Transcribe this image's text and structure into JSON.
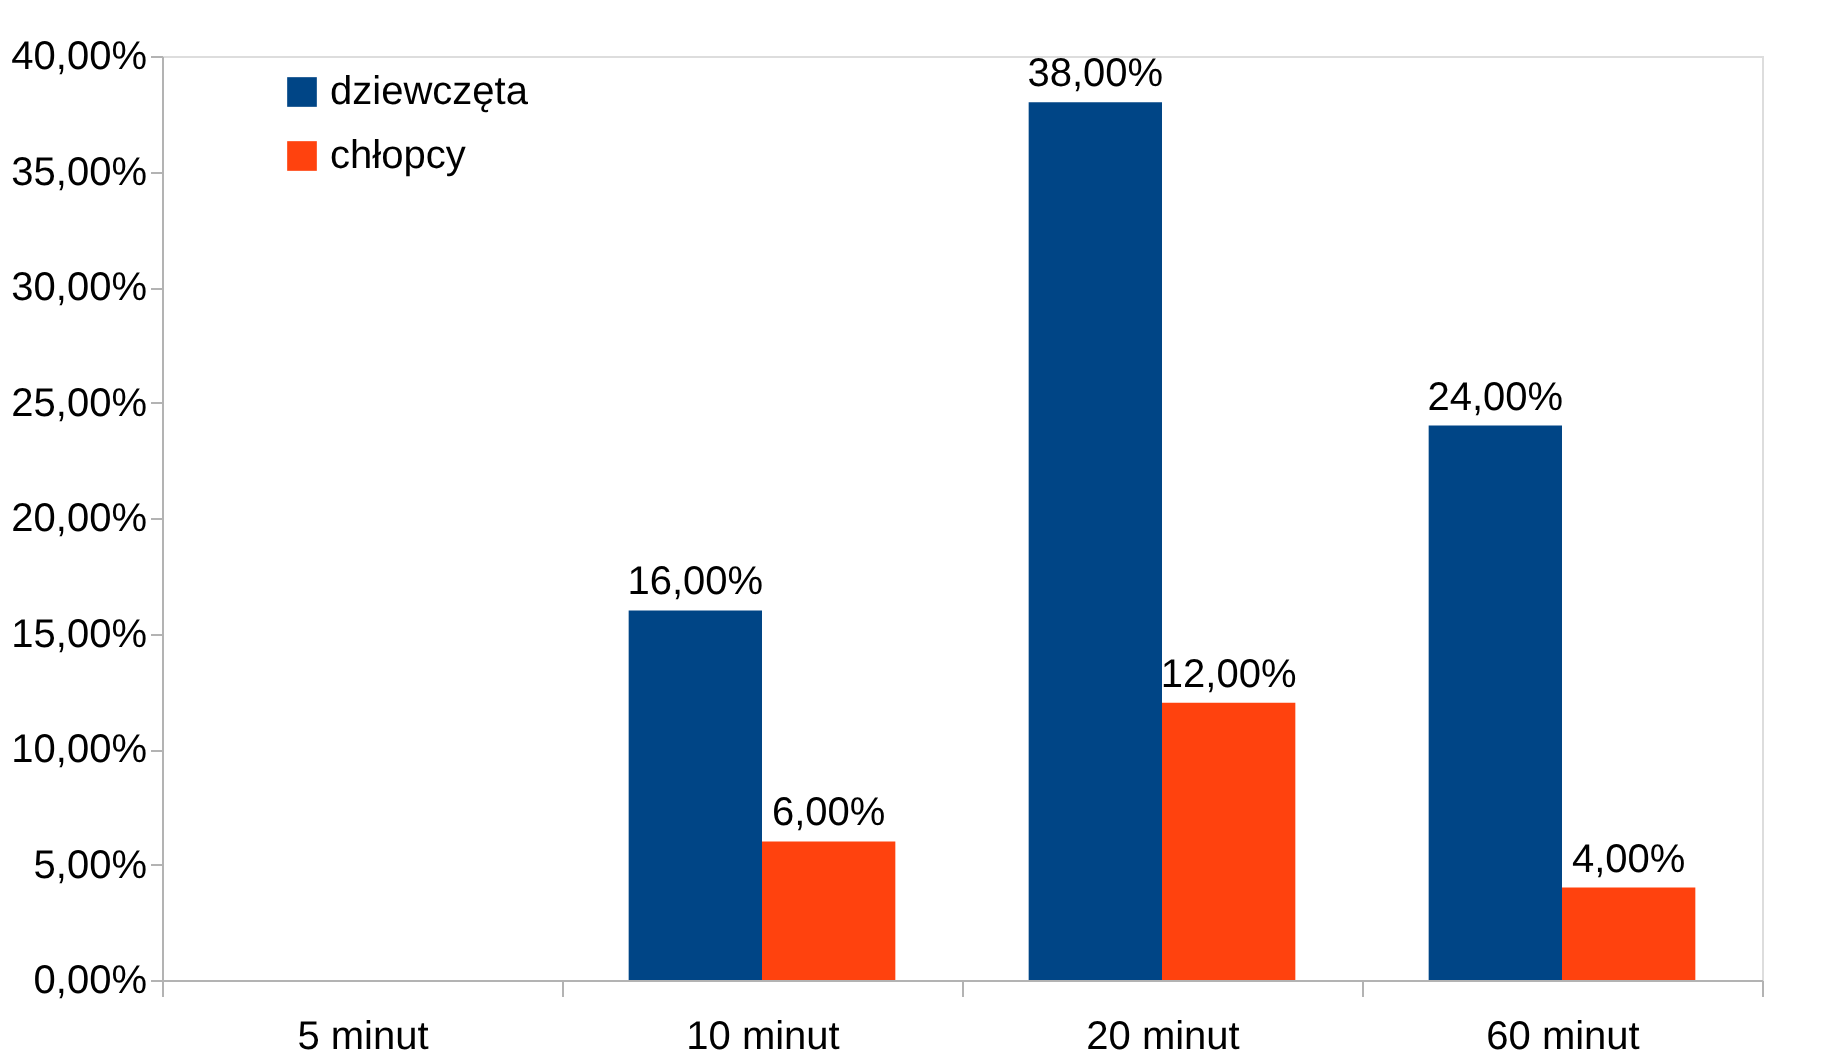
{
  "chart_data": {
    "type": "bar",
    "categories": [
      "5 minut",
      "10 minut",
      "20 minut",
      "60 minut"
    ],
    "series": [
      {
        "name": "dziewczęta",
        "color": "#004586",
        "values": [
          null,
          16,
          38,
          24
        ],
        "value_labels": [
          null,
          "16,00%",
          "38,00%",
          "24,00%"
        ]
      },
      {
        "name": "chłopcy",
        "color": "#ff420e",
        "values": [
          null,
          6,
          12,
          4
        ],
        "value_labels": [
          null,
          "6,00%",
          "12,00%",
          "4,00%"
        ]
      }
    ],
    "ylim": [
      0,
      40
    ],
    "yticks": [
      {
        "value": 0,
        "label": "0,00%"
      },
      {
        "value": 5,
        "label": "5,00%"
      },
      {
        "value": 10,
        "label": "10,00%"
      },
      {
        "value": 15,
        "label": "15,00%"
      },
      {
        "value": 20,
        "label": "20,00%"
      },
      {
        "value": 25,
        "label": "25,00%"
      },
      {
        "value": 30,
        "label": "30,00%"
      },
      {
        "value": 35,
        "label": "35,00%"
      },
      {
        "value": 40,
        "label": "40,00%"
      }
    ],
    "grid": false,
    "legend": "top left"
  }
}
